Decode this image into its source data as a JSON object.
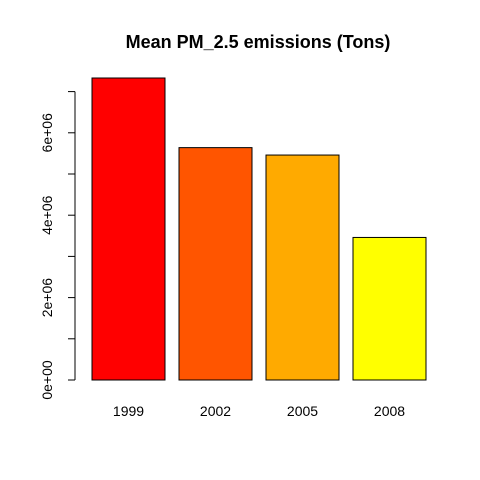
{
  "chart_data": {
    "type": "bar",
    "title": "Mean PM_2.5 emissions (Tons)",
    "xlabel": "",
    "ylabel": "",
    "categories": [
      "1999",
      "2002",
      "2005",
      "2008"
    ],
    "values": [
      7330000,
      5640000,
      5460000,
      3460000
    ],
    "colors": [
      "#FF0000",
      "#FF5500",
      "#FFAA00",
      "#FFFF00"
    ],
    "ylim": [
      0,
      7330000
    ],
    "y_ticks": [
      0,
      2000000,
      4000000,
      6000000
    ],
    "y_tick_labels": [
      "0e+00",
      "2e+06",
      "4e+06",
      "6e+06"
    ],
    "grid": false,
    "legend": "none"
  }
}
